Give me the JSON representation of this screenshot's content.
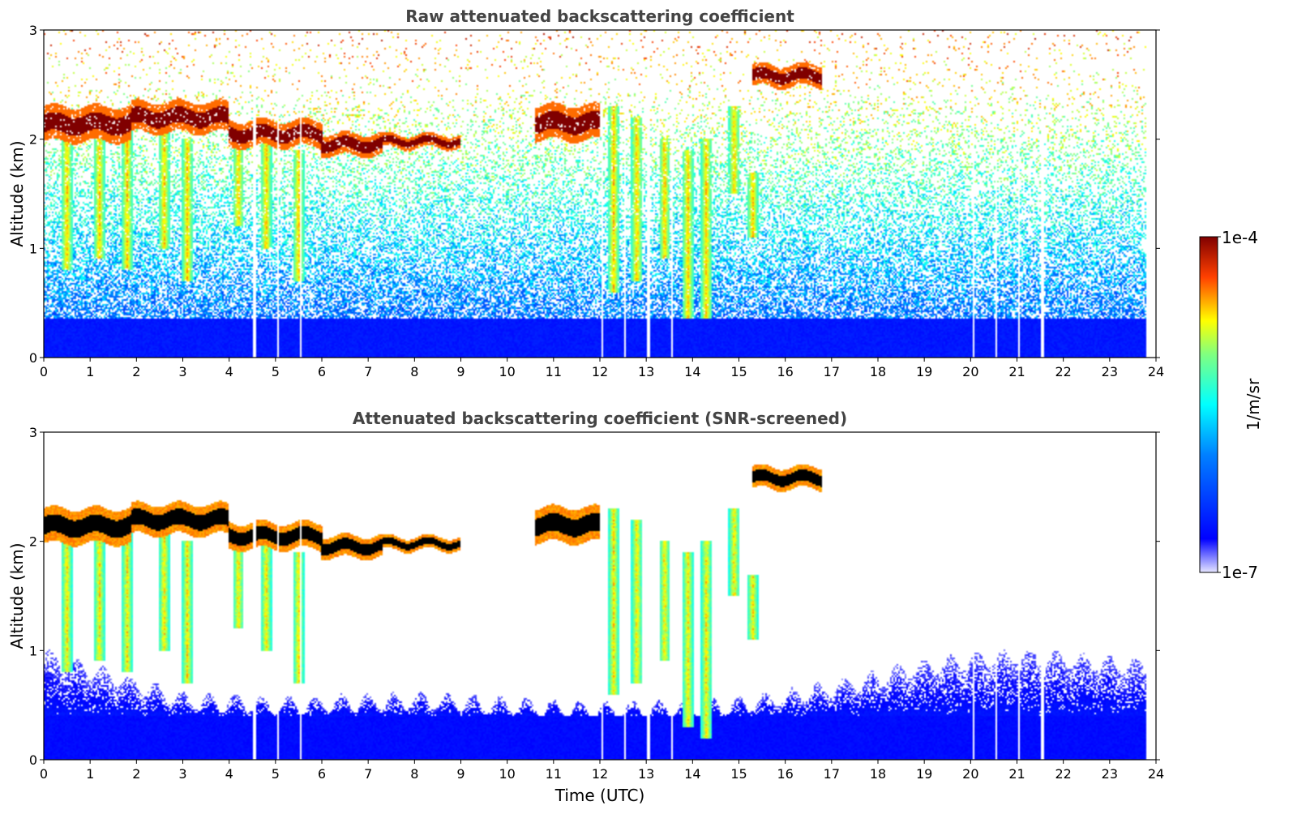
{
  "chart_data": [
    {
      "type": "heatmap",
      "title": "Raw attenuated backscattering coefficient",
      "xlabel": "",
      "ylabel": "Altitude (km)",
      "xlim": [
        0,
        24
      ],
      "ylim": [
        0,
        3
      ],
      "xticks": [
        0,
        1,
        2,
        3,
        4,
        5,
        6,
        7,
        8,
        9,
        10,
        11,
        12,
        13,
        14,
        15,
        16,
        17,
        18,
        19,
        20,
        21,
        22,
        23,
        24
      ],
      "yticks": [
        0,
        1,
        2,
        3
      ],
      "data_time_end": 23.8,
      "mode": "raw",
      "noise_level": 0.45,
      "cloud_layers": [
        {
          "t_start": 0.0,
          "t_end": 1.9,
          "alt": 2.14,
          "thickness": 0.16
        },
        {
          "t_start": 1.9,
          "t_end": 4.0,
          "alt": 2.2,
          "thickness": 0.14
        },
        {
          "t_start": 4.0,
          "t_end": 6.0,
          "alt": 2.05,
          "thickness": 0.12
        },
        {
          "t_start": 6.0,
          "t_end": 7.3,
          "alt": 1.95,
          "thickness": 0.1
        },
        {
          "t_start": 7.3,
          "t_end": 9.0,
          "alt": 1.98,
          "thickness": 0.06
        },
        {
          "t_start": 10.6,
          "t_end": 12.0,
          "alt": 2.15,
          "thickness": 0.16
        },
        {
          "t_start": 15.3,
          "t_end": 16.8,
          "alt": 2.58,
          "thickness": 0.1
        }
      ],
      "precip_streaks": [
        {
          "t": 0.5,
          "top": 2.1,
          "bottom": 0.8
        },
        {
          "t": 1.2,
          "top": 2.1,
          "bottom": 0.9
        },
        {
          "t": 1.8,
          "top": 2.1,
          "bottom": 0.8
        },
        {
          "t": 2.6,
          "top": 2.1,
          "bottom": 1.0
        },
        {
          "t": 3.1,
          "top": 2.0,
          "bottom": 0.7
        },
        {
          "t": 4.2,
          "top": 2.0,
          "bottom": 1.2
        },
        {
          "t": 4.8,
          "top": 2.0,
          "bottom": 1.0
        },
        {
          "t": 5.5,
          "top": 1.9,
          "bottom": 0.7
        },
        {
          "t": 12.3,
          "top": 2.3,
          "bottom": 0.6
        },
        {
          "t": 12.8,
          "top": 2.2,
          "bottom": 0.7
        },
        {
          "t": 13.4,
          "top": 2.0,
          "bottom": 0.9
        },
        {
          "t": 13.9,
          "top": 1.9,
          "bottom": 0.3
        },
        {
          "t": 14.3,
          "top": 2.0,
          "bottom": 0.2
        },
        {
          "t": 14.9,
          "top": 2.3,
          "bottom": 1.5
        },
        {
          "t": 15.3,
          "top": 1.7,
          "bottom": 1.1
        }
      ],
      "gap_times": [
        4.55,
        5.05,
        5.55,
        12.05,
        12.55,
        13.05,
        13.55,
        20.05,
        20.55,
        21.05,
        21.55
      ]
    },
    {
      "type": "heatmap",
      "title": "Attenuated backscattering coefficient (SNR-screened)",
      "xlabel": "Time (UTC)",
      "ylabel": "Altitude (km)",
      "xlim": [
        0,
        24
      ],
      "ylim": [
        0,
        3
      ],
      "xticks": [
        0,
        1,
        2,
        3,
        4,
        5,
        6,
        7,
        8,
        9,
        10,
        11,
        12,
        13,
        14,
        15,
        16,
        17,
        18,
        19,
        20,
        21,
        22,
        23,
        24
      ],
      "yticks": [
        0,
        1,
        2,
        3
      ],
      "data_time_end": 23.8,
      "mode": "screened",
      "boundary_layer_top": [
        {
          "t": 0,
          "alt": 0.95
        },
        {
          "t": 1.5,
          "alt": 0.75
        },
        {
          "t": 3.0,
          "alt": 0.55
        },
        {
          "t": 5.0,
          "alt": 0.5
        },
        {
          "t": 8.0,
          "alt": 0.55
        },
        {
          "t": 10.0,
          "alt": 0.5
        },
        {
          "t": 12.0,
          "alt": 0.45
        },
        {
          "t": 15.0,
          "alt": 0.5
        },
        {
          "t": 17.0,
          "alt": 0.65
        },
        {
          "t": 19.0,
          "alt": 0.85
        },
        {
          "t": 21.0,
          "alt": 0.95
        },
        {
          "t": 23.8,
          "alt": 0.85
        }
      ],
      "cloud_layers": [
        {
          "t_start": 0.0,
          "t_end": 1.9,
          "alt": 2.14,
          "thickness": 0.16
        },
        {
          "t_start": 1.9,
          "t_end": 4.0,
          "alt": 2.2,
          "thickness": 0.14
        },
        {
          "t_start": 4.0,
          "t_end": 6.0,
          "alt": 2.05,
          "thickness": 0.12
        },
        {
          "t_start": 6.0,
          "t_end": 7.3,
          "alt": 1.95,
          "thickness": 0.1
        },
        {
          "t_start": 7.3,
          "t_end": 9.0,
          "alt": 1.98,
          "thickness": 0.06
        },
        {
          "t_start": 10.6,
          "t_end": 12.0,
          "alt": 2.15,
          "thickness": 0.16
        },
        {
          "t_start": 15.3,
          "t_end": 16.8,
          "alt": 2.58,
          "thickness": 0.1
        }
      ],
      "precip_streaks": [
        {
          "t": 0.5,
          "top": 2.1,
          "bottom": 0.8
        },
        {
          "t": 1.2,
          "top": 2.1,
          "bottom": 0.9
        },
        {
          "t": 1.8,
          "top": 2.1,
          "bottom": 0.8
        },
        {
          "t": 2.6,
          "top": 2.1,
          "bottom": 1.0
        },
        {
          "t": 3.1,
          "top": 2.0,
          "bottom": 0.7
        },
        {
          "t": 4.2,
          "top": 2.0,
          "bottom": 1.2
        },
        {
          "t": 4.8,
          "top": 2.0,
          "bottom": 1.0
        },
        {
          "t": 5.5,
          "top": 1.9,
          "bottom": 0.7
        },
        {
          "t": 12.3,
          "top": 2.3,
          "bottom": 0.6
        },
        {
          "t": 12.8,
          "top": 2.2,
          "bottom": 0.7
        },
        {
          "t": 13.4,
          "top": 2.0,
          "bottom": 0.9
        },
        {
          "t": 13.9,
          "top": 1.9,
          "bottom": 0.3
        },
        {
          "t": 14.3,
          "top": 2.0,
          "bottom": 0.2
        },
        {
          "t": 14.9,
          "top": 2.3,
          "bottom": 1.5
        },
        {
          "t": 15.3,
          "top": 1.7,
          "bottom": 1.1
        }
      ],
      "gap_times": [
        4.55,
        5.05,
        5.55,
        12.05,
        12.55,
        13.05,
        13.55,
        20.05,
        20.55,
        21.05,
        21.55
      ]
    }
  ],
  "colorbar": {
    "label": "1/m/sr",
    "max_label": "1e-4",
    "min_label": "1e-7",
    "colormap": "jet",
    "stops": [
      "#e6e6ff",
      "#0000ff",
      "#00ffff",
      "#ffff00",
      "#ff0000",
      "#800000"
    ]
  }
}
